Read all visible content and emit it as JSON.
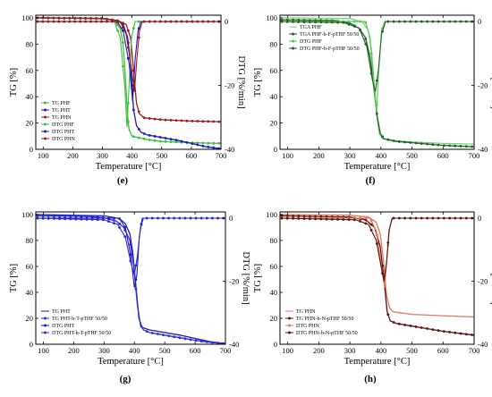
{
  "chart_data": [
    {
      "type": "line",
      "panel_label": "(e)",
      "xlabel": "Temperature [°C]",
      "ylabel": "TG [%]",
      "y2label": "DTG [%/min]",
      "xlim": [
        75,
        700
      ],
      "ylim": [
        0,
        102
      ],
      "y2lim": [
        -40,
        2
      ],
      "xticks": [
        100,
        200,
        300,
        400,
        500,
        600,
        700
      ],
      "yticks": [
        0,
        20,
        40,
        60,
        80,
        100
      ],
      "y2ticks": [
        0,
        -20,
        -40
      ],
      "legend_position": "bottom-left",
      "series": [
        {
          "name": "TG PHF",
          "color": "#3cc23c",
          "axis": "tg",
          "markers": true,
          "points": [
            [
              75,
              100
            ],
            [
              300,
              99.5
            ],
            [
              340,
              98
            ],
            [
              360,
              92
            ],
            [
              370,
              80
            ],
            [
              380,
              45
            ],
            [
              385,
              25
            ],
            [
              390,
              15
            ],
            [
              400,
              10
            ],
            [
              450,
              7.5
            ],
            [
              500,
              6
            ],
            [
              600,
              5
            ],
            [
              700,
              4.5
            ]
          ]
        },
        {
          "name": "TG PHT",
          "color": "#1a1ab4",
          "axis": "tg",
          "markers": true,
          "points": [
            [
              75,
              100
            ],
            [
              300,
              99.5
            ],
            [
              350,
              98
            ],
            [
              370,
              95
            ],
            [
              385,
              85
            ],
            [
              395,
              65
            ],
            [
              405,
              30
            ],
            [
              415,
              18
            ],
            [
              430,
              13
            ],
            [
              450,
              11
            ],
            [
              500,
              9
            ],
            [
              550,
              7
            ],
            [
              600,
              4.5
            ],
            [
              650,
              2
            ],
            [
              700,
              0.5
            ]
          ]
        },
        {
          "name": "TG PHN",
          "color": "#a01818",
          "axis": "tg",
          "markers": true,
          "points": [
            [
              75,
              100
            ],
            [
              300,
              99.5
            ],
            [
              350,
              98
            ],
            [
              380,
              95
            ],
            [
              395,
              85
            ],
            [
              405,
              60
            ],
            [
              415,
              35
            ],
            [
              425,
              27
            ],
            [
              440,
              24
            ],
            [
              500,
              22.5
            ],
            [
              600,
              21.5
            ],
            [
              700,
              21
            ]
          ]
        },
        {
          "name": "DTG PHF",
          "color": "#3cc23c",
          "axis": "dtg",
          "markers": true,
          "points": [
            [
              75,
              0
            ],
            [
              340,
              0
            ],
            [
              360,
              -5
            ],
            [
              375,
              -20
            ],
            [
              383,
              -33
            ],
            [
              390,
              -20
            ],
            [
              398,
              -5
            ],
            [
              410,
              0
            ],
            [
              700,
              0
            ]
          ]
        },
        {
          "name": "DTG PHT",
          "color": "#1a1ab4",
          "axis": "dtg",
          "markers": true,
          "points": [
            [
              75,
              0
            ],
            [
              350,
              0
            ],
            [
              370,
              -3
            ],
            [
              390,
              -13
            ],
            [
              402,
              -25
            ],
            [
              410,
              -12
            ],
            [
              420,
              -3
            ],
            [
              430,
              0
            ],
            [
              700,
              0
            ]
          ]
        },
        {
          "name": "DTG PHN",
          "color": "#a01818",
          "axis": "dtg",
          "markers": true,
          "points": [
            [
              75,
              0
            ],
            [
              360,
              0
            ],
            [
              380,
              -4
            ],
            [
              397,
              -14
            ],
            [
              408,
              -22
            ],
            [
              416,
              -12
            ],
            [
              425,
              -3
            ],
            [
              435,
              0
            ],
            [
              700,
              0
            ]
          ]
        }
      ]
    },
    {
      "type": "line",
      "panel_label": "(f)",
      "xlabel": "Temperature [°C]",
      "ylabel": "TG [%]",
      "y2label": "DTG [%/min]",
      "xlim": [
        75,
        700
      ],
      "ylim": [
        0,
        102
      ],
      "y2lim": [
        -40,
        2
      ],
      "xticks": [
        100,
        200,
        300,
        400,
        500,
        600,
        700
      ],
      "yticks": [
        0,
        20,
        40,
        60,
        80,
        100
      ],
      "y2ticks": [
        0,
        -20,
        -40
      ],
      "legend_position": "top-left",
      "series": [
        {
          "name": "TGA PHF",
          "color": "#7ad07a",
          "axis": "tg",
          "markers": false,
          "points": [
            [
              75,
              100
            ],
            [
              300,
              99.5
            ],
            [
              340,
              97
            ],
            [
              360,
              90
            ],
            [
              370,
              75
            ],
            [
              380,
              45
            ],
            [
              387,
              25
            ],
            [
              395,
              12
            ],
            [
              405,
              8
            ],
            [
              450,
              6.5
            ],
            [
              500,
              5.5
            ],
            [
              600,
              4.5
            ],
            [
              700,
              4
            ]
          ]
        },
        {
          "name": "TGA PHF-b-F-pTHF 50/50",
          "color": "#1f5f1f",
          "axis": "tg",
          "markers": true,
          "points": [
            [
              75,
              98.5
            ],
            [
              250,
              98
            ],
            [
              300,
              96
            ],
            [
              330,
              92
            ],
            [
              350,
              85
            ],
            [
              365,
              70
            ],
            [
              378,
              45
            ],
            [
              388,
              25
            ],
            [
              398,
              12
            ],
            [
              410,
              8
            ],
            [
              450,
              6
            ],
            [
              500,
              5
            ],
            [
              600,
              3
            ],
            [
              700,
              2
            ]
          ]
        },
        {
          "name": "DTG PHF",
          "color": "#4ccd4c",
          "axis": "dtg",
          "markers": true,
          "points": [
            [
              75,
              0
            ],
            [
              350,
              0
            ],
            [
              365,
              -5
            ],
            [
              377,
              -20
            ],
            [
              386,
              -28
            ],
            [
              393,
              -15
            ],
            [
              402,
              -3
            ],
            [
              412,
              0
            ],
            [
              700,
              0
            ]
          ]
        },
        {
          "name": "DTG PHF-b-F-pTHF 50/50",
          "color": "#1f5f1f",
          "axis": "dtg",
          "markers": true,
          "points": [
            [
              75,
              0
            ],
            [
              280,
              -0.3
            ],
            [
              330,
              -2
            ],
            [
              355,
              -8
            ],
            [
              372,
              -18
            ],
            [
              382,
              -22
            ],
            [
              392,
              -15
            ],
            [
              402,
              -4
            ],
            [
              415,
              0
            ],
            [
              700,
              0
            ]
          ]
        }
      ]
    },
    {
      "type": "line",
      "panel_label": "(g)",
      "xlabel": "Temperature [°C]",
      "ylabel": "TG [%]",
      "y2label": "DTG [%/min]",
      "xlim": [
        75,
        700
      ],
      "ylim": [
        0,
        102
      ],
      "y2lim": [
        -40,
        2
      ],
      "xticks": [
        100,
        200,
        300,
        400,
        500,
        600,
        700
      ],
      "yticks": [
        0,
        20,
        40,
        60,
        80,
        100
      ],
      "y2ticks": [
        0,
        -20,
        -40
      ],
      "legend_position": "bottom-left",
      "series": [
        {
          "name": "TG PHT",
          "color": "#1a1ab4",
          "axis": "tg",
          "markers": false,
          "points": [
            [
              75,
              100
            ],
            [
              300,
              99
            ],
            [
              350,
              97
            ],
            [
              370,
              93
            ],
            [
              385,
              85
            ],
            [
              395,
              70
            ],
            [
              405,
              45
            ],
            [
              415,
              20
            ],
            [
              425,
              13
            ],
            [
              450,
              11
            ],
            [
              500,
              9
            ],
            [
              550,
              7
            ],
            [
              600,
              4.5
            ],
            [
              650,
              2
            ],
            [
              700,
              0.5
            ]
          ]
        },
        {
          "name": "TG PHT-b-T-pTHF 50/50",
          "color": "#2a2ad8",
          "axis": "tg",
          "markers": true,
          "points": [
            [
              75,
              99
            ],
            [
              250,
              98.5
            ],
            [
              300,
              97.5
            ],
            [
              340,
              95
            ],
            [
              365,
              90
            ],
            [
              385,
              80
            ],
            [
              398,
              60
            ],
            [
              410,
              30
            ],
            [
              420,
              15
            ],
            [
              430,
              11
            ],
            [
              450,
              9
            ],
            [
              500,
              7
            ],
            [
              550,
              5
            ],
            [
              600,
              3
            ],
            [
              650,
              1.5
            ],
            [
              700,
              0.5
            ]
          ]
        },
        {
          "name": "DTG PHT",
          "color": "#1a1ab4",
          "axis": "dtg",
          "markers": true,
          "points": [
            [
              75,
              0
            ],
            [
              350,
              0
            ],
            [
              370,
              -3
            ],
            [
              388,
              -12
            ],
            [
              400,
              -22
            ],
            [
              408,
              -18
            ],
            [
              416,
              -6
            ],
            [
              426,
              0
            ],
            [
              700,
              0
            ]
          ]
        },
        {
          "name": "DTG PHT-b-T-pTHF 50/50",
          "color": "#2a2ad8",
          "axis": "dtg",
          "markers": true,
          "points": [
            [
              75,
              0
            ],
            [
              300,
              -0.5
            ],
            [
              345,
              -2
            ],
            [
              370,
              -6
            ],
            [
              388,
              -14
            ],
            [
              400,
              -18
            ],
            [
              410,
              -12
            ],
            [
              420,
              -3
            ],
            [
              430,
              0
            ],
            [
              700,
              0
            ]
          ]
        }
      ]
    },
    {
      "type": "line",
      "panel_label": "(h)",
      "xlabel": "Temperature [°C]",
      "ylabel": "TG [%]",
      "y2label": "DTG [%/min]",
      "xlim": [
        75,
        700
      ],
      "ylim": [
        0,
        102
      ],
      "y2lim": [
        -40,
        2
      ],
      "xticks": [
        100,
        200,
        300,
        400,
        500,
        600,
        700
      ],
      "yticks": [
        0,
        20,
        40,
        60,
        80,
        100
      ],
      "y2ticks": [
        0,
        -20,
        -40
      ],
      "legend_position": "bottom-left",
      "series": [
        {
          "name": "TG PHN",
          "color": "#e07a5a",
          "axis": "tg",
          "markers": false,
          "points": [
            [
              75,
              100
            ],
            [
              300,
              99.5
            ],
            [
              360,
              98
            ],
            [
              385,
              94
            ],
            [
              398,
              85
            ],
            [
              408,
              65
            ],
            [
              418,
              38
            ],
            [
              428,
              28
            ],
            [
              440,
              25
            ],
            [
              500,
              23
            ],
            [
              600,
              22
            ],
            [
              700,
              21
            ]
          ]
        },
        {
          "name": "TG PHN-b-N-pTHF 50/50",
          "color": "#5a1010",
          "axis": "tg",
          "markers": true,
          "points": [
            [
              75,
              99
            ],
            [
              300,
              98
            ],
            [
              350,
              96
            ],
            [
              380,
              90
            ],
            [
              398,
              75
            ],
            [
              410,
              50
            ],
            [
              420,
              25
            ],
            [
              430,
              18
            ],
            [
              450,
              16
            ],
            [
              500,
              14
            ],
            [
              550,
              12
            ],
            [
              600,
              10
            ],
            [
              650,
              8.5
            ],
            [
              700,
              7
            ]
          ]
        },
        {
          "name": "DTG PHN",
          "color": "#e07a5a",
          "axis": "dtg",
          "markers": true,
          "points": [
            [
              75,
              0
            ],
            [
              365,
              0
            ],
            [
              385,
              -4
            ],
            [
              400,
              -14
            ],
            [
              412,
              -22
            ],
            [
              420,
              -12
            ],
            [
              428,
              -3
            ],
            [
              438,
              0
            ],
            [
              700,
              0
            ]
          ]
        },
        {
          "name": "DTG PHN-b-N-pTHF 50/50",
          "color": "#5a1010",
          "axis": "dtg",
          "markers": true,
          "points": [
            [
              75,
              0
            ],
            [
              320,
              -0.5
            ],
            [
              360,
              -2
            ],
            [
              385,
              -7
            ],
            [
              400,
              -15
            ],
            [
              410,
              -20
            ],
            [
              418,
              -14
            ],
            [
              426,
              -4
            ],
            [
              436,
              0
            ],
            [
              700,
              0
            ]
          ]
        }
      ]
    }
  ]
}
